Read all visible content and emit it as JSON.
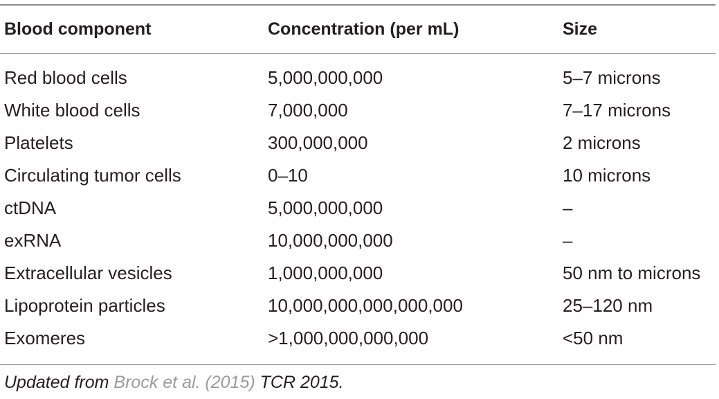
{
  "table": {
    "headers": [
      "Blood component",
      "Concentration (per mL)",
      "Size"
    ],
    "rows": [
      [
        "Red blood cells",
        "5,000,000,000",
        "5–7 microns"
      ],
      [
        "White blood cells",
        "7,000,000",
        "7–17 microns"
      ],
      [
        "Platelets",
        "300,000,000",
        "2 microns"
      ],
      [
        "Circulating tumor cells",
        "0–10",
        "10 microns"
      ],
      [
        "ctDNA",
        "5,000,000,000",
        "–"
      ],
      [
        "exRNA",
        "10,000,000,000",
        "–"
      ],
      [
        "Extracellular vesicles",
        "1,000,000,000",
        "50 nm to microns"
      ],
      [
        "Lipoprotein particles",
        "10,000,000,000,000,000",
        "25–120 nm"
      ],
      [
        "Exomeres",
        ">1,000,000,000,000",
        "<50 nm"
      ]
    ]
  },
  "footnote": {
    "prefix": "Updated from ",
    "reference": "Brock et al. (2015)",
    "suffix": " TCR 2015."
  },
  "colors": {
    "text": "#231f20",
    "reference_link": "#9b9b9b",
    "rules": "#8a8a8a"
  }
}
